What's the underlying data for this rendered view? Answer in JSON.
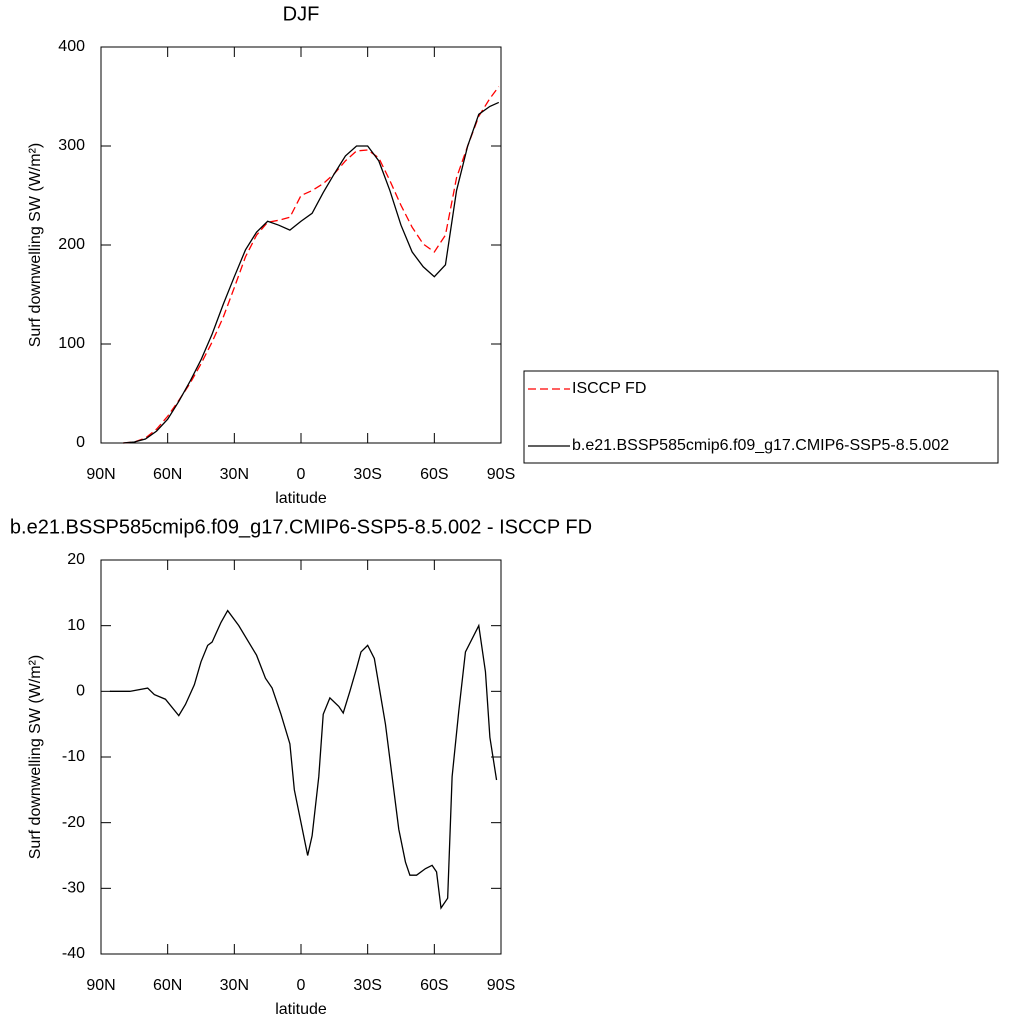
{
  "chart_data": [
    {
      "type": "line",
      "title": "DJF",
      "xlabel": "latitude",
      "ylabel": "Surf downwelling SW (W/m²)",
      "x": [
        80,
        75,
        70,
        65,
        60,
        55,
        50,
        45,
        40,
        35,
        30,
        25,
        20,
        15,
        10,
        5,
        0,
        -5,
        -10,
        -15,
        -20,
        -25,
        -30,
        -35,
        -40,
        -45,
        -50,
        -55,
        -60,
        -65,
        -70,
        -75,
        -80,
        -85,
        -89
      ],
      "series": [
        {
          "name": "ISCCP FD",
          "color": "#ff0000",
          "style": "dashed",
          "values": [
            0,
            1,
            5,
            14,
            27,
            43,
            60,
            80,
            102,
            127,
            157,
            188,
            210,
            223,
            225,
            228,
            250,
            255,
            262,
            272,
            285,
            295,
            296,
            288,
            265,
            240,
            218,
            201,
            193,
            210,
            268,
            300,
            330,
            348,
            360
          ]
        },
        {
          "name": "b.e21.BSSP585cmip6.f09_g17.CMIP6-SSP5-8.5.002",
          "color": "#000000",
          "style": "solid",
          "values": [
            0,
            1,
            4,
            12,
            24,
            42,
            62,
            84,
            110,
            140,
            168,
            195,
            213,
            224,
            220,
            215,
            224,
            232,
            253,
            272,
            290,
            300,
            300,
            285,
            255,
            220,
            193,
            178,
            168,
            180,
            255,
            300,
            332,
            340,
            344
          ]
        }
      ],
      "xlim": [
        90,
        -90
      ],
      "xticks": [
        {
          "value": 90,
          "label": "90N"
        },
        {
          "value": 60,
          "label": "60N"
        },
        {
          "value": 30,
          "label": "30N"
        },
        0,
        {
          "value": -30,
          "label": "30S"
        },
        {
          "value": -60,
          "label": "60S"
        },
        {
          "value": -90,
          "label": "90S"
        }
      ],
      "ylim": [
        0,
        400
      ],
      "yticks": [
        0,
        100,
        200,
        300,
        400
      ],
      "legend": "right"
    },
    {
      "type": "line",
      "title": "b.e21.BSSP585cmip6.f09_g17.CMIP6-SSP5-8.5.002 - ISCCP FD",
      "xlabel": "latitude",
      "ylabel": "Surf downwelling SW (W/m²)",
      "x": [
        86,
        77,
        69,
        66,
        61,
        55,
        52,
        48,
        45,
        42,
        40,
        36,
        33,
        28,
        20,
        16,
        13,
        9,
        5,
        3,
        0,
        -3,
        -5,
        -8,
        -10,
        -13,
        -17,
        -19,
        -22,
        -25,
        -27,
        -30,
        -33,
        -35,
        -38,
        -41,
        -44,
        -47,
        -49,
        -52,
        -56,
        -59,
        -61,
        -63,
        -66,
        -68,
        -71,
        -74,
        -80,
        -83,
        -85,
        -88
      ],
      "series": [
        {
          "color": "#000000",
          "style": "solid",
          "values": [
            0,
            0,
            0.5,
            -0.5,
            -1.2,
            -3.7,
            -2,
            1,
            4.5,
            7,
            7.5,
            10.5,
            12.3,
            10,
            5.5,
            2,
            0.5,
            -3.5,
            -8,
            -15,
            -20,
            -25,
            -22,
            -13,
            -3.5,
            -1,
            -2.3,
            -3.3,
            0,
            3.5,
            6,
            7,
            5,
            1,
            -5,
            -13,
            -21,
            -26,
            -28,
            -28,
            -27,
            -26.5,
            -27.5,
            -33,
            -31.5,
            -13,
            -3,
            6,
            10,
            3,
            -7,
            -13.5
          ]
        }
      ],
      "xlim": [
        90,
        -90
      ],
      "xticks": [
        {
          "value": 90,
          "label": "90N"
        },
        {
          "value": 60,
          "label": "60N"
        },
        {
          "value": 30,
          "label": "30N"
        },
        0,
        {
          "value": -30,
          "label": "30S"
        },
        {
          "value": -60,
          "label": "60S"
        },
        {
          "value": -90,
          "label": "90S"
        }
      ],
      "ylim": [
        -40,
        20
      ],
      "yticks": [
        -40,
        -30,
        -20,
        -10,
        0,
        10,
        20
      ]
    }
  ]
}
